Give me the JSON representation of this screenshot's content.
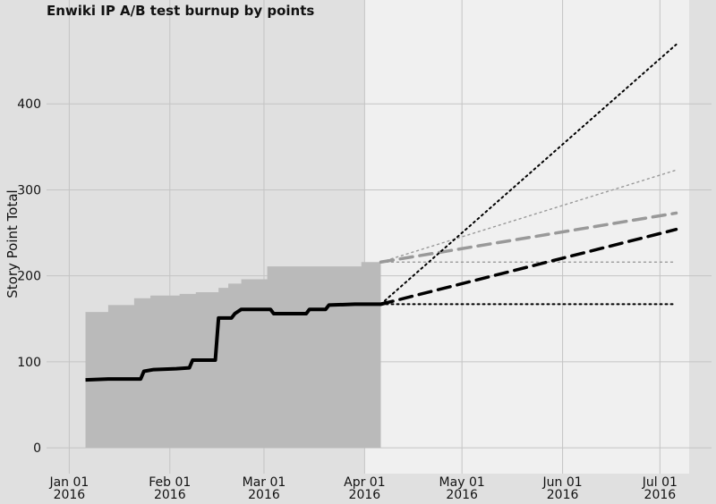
{
  "chart_data": {
    "type": "line",
    "title": "Enwiki IP A/B test burnup by points",
    "xlabel": "",
    "ylabel": "Story Point Total",
    "grid": true,
    "legend": "none",
    "x_range": [
      "2015-12-25",
      "2016-07-10"
    ],
    "ylim": [
      -30,
      500
    ],
    "forecast_start": "2016-04-01",
    "x_ticks": [
      {
        "date": "2016-01-01",
        "line1": "Jan 01",
        "line2": "2016"
      },
      {
        "date": "2016-02-01",
        "line1": "Feb 01",
        "line2": "2016"
      },
      {
        "date": "2016-03-01",
        "line1": "Mar 01",
        "line2": "2016"
      },
      {
        "date": "2016-04-01",
        "line1": "Apr 01",
        "line2": "2016"
      },
      {
        "date": "2016-05-01",
        "line1": "May 01",
        "line2": "2016"
      },
      {
        "date": "2016-06-01",
        "line1": "Jun 01",
        "line2": "2016"
      },
      {
        "date": "2016-07-01",
        "line1": "Jul 01",
        "line2": "2016"
      }
    ],
    "y_ticks": [
      0,
      100,
      200,
      300,
      400
    ],
    "colors": {
      "scope_area": "#bababa",
      "completed": "#000000",
      "forecast_scope": "#999999",
      "forecast_completed": "#000000",
      "plot_bg": "#e0e0e0",
      "forecast_bg": "#f0f0f0",
      "grid": "#c4c4c4"
    },
    "scope_total": [
      {
        "date": "2016-01-06",
        "value": 158
      },
      {
        "date": "2016-01-13",
        "value": 166
      },
      {
        "date": "2016-01-21",
        "value": 174
      },
      {
        "date": "2016-01-26",
        "value": 177
      },
      {
        "date": "2016-02-04",
        "value": 179
      },
      {
        "date": "2016-02-09",
        "value": 181
      },
      {
        "date": "2016-02-12",
        "value": 181
      },
      {
        "date": "2016-02-16",
        "value": 186
      },
      {
        "date": "2016-02-19",
        "value": 191
      },
      {
        "date": "2016-02-23",
        "value": 196
      },
      {
        "date": "2016-03-02",
        "value": 211
      },
      {
        "date": "2016-03-31",
        "value": 216
      },
      {
        "date": "2016-04-06",
        "value": 216
      }
    ],
    "completed": [
      {
        "date": "2016-01-06",
        "value": 79
      },
      {
        "date": "2016-01-13",
        "value": 80
      },
      {
        "date": "2016-01-23",
        "value": 80
      },
      {
        "date": "2016-01-24",
        "value": 89
      },
      {
        "date": "2016-01-27",
        "value": 91
      },
      {
        "date": "2016-02-03",
        "value": 92
      },
      {
        "date": "2016-02-07",
        "value": 93
      },
      {
        "date": "2016-02-08",
        "value": 102
      },
      {
        "date": "2016-02-15",
        "value": 102
      },
      {
        "date": "2016-02-16",
        "value": 151
      },
      {
        "date": "2016-02-20",
        "value": 151
      },
      {
        "date": "2016-02-21",
        "value": 156
      },
      {
        "date": "2016-02-23",
        "value": 161
      },
      {
        "date": "2016-03-03",
        "value": 161
      },
      {
        "date": "2016-03-04",
        "value": 156
      },
      {
        "date": "2016-03-14",
        "value": 156
      },
      {
        "date": "2016-03-15",
        "value": 161
      },
      {
        "date": "2016-03-20",
        "value": 161
      },
      {
        "date": "2016-03-21",
        "value": 166
      },
      {
        "date": "2016-03-29",
        "value": 167
      },
      {
        "date": "2016-04-06",
        "value": 167
      },
      {
        "date": "2016-04-08",
        "value": 169
      }
    ],
    "forecast_lines": [
      {
        "role": "scope-trend",
        "style": "dashed-thick",
        "color": "#999999",
        "points": [
          {
            "date": "2016-04-06",
            "value": 216
          },
          {
            "date": "2016-07-06",
            "value": 273
          }
        ]
      },
      {
        "role": "scope-high",
        "style": "dotted-thin",
        "color": "#999999",
        "points": [
          {
            "date": "2016-04-06",
            "value": 216
          },
          {
            "date": "2016-07-06",
            "value": 323
          }
        ]
      },
      {
        "role": "scope-flat",
        "style": "dotted-thin",
        "color": "#999999",
        "points": [
          {
            "date": "2016-04-06",
            "value": 216
          },
          {
            "date": "2016-07-06",
            "value": 216
          }
        ]
      },
      {
        "role": "completed-trend",
        "style": "dashed-thick",
        "color": "#000000",
        "points": [
          {
            "date": "2016-04-06",
            "value": 167
          },
          {
            "date": "2016-07-06",
            "value": 254
          }
        ]
      },
      {
        "role": "completed-high",
        "style": "dotted",
        "color": "#000000",
        "points": [
          {
            "date": "2016-04-06",
            "value": 167
          },
          {
            "date": "2016-07-06",
            "value": 469
          }
        ]
      },
      {
        "role": "completed-flat",
        "style": "dotted",
        "color": "#000000",
        "points": [
          {
            "date": "2016-04-06",
            "value": 167
          },
          {
            "date": "2016-07-06",
            "value": 167
          }
        ]
      }
    ]
  }
}
